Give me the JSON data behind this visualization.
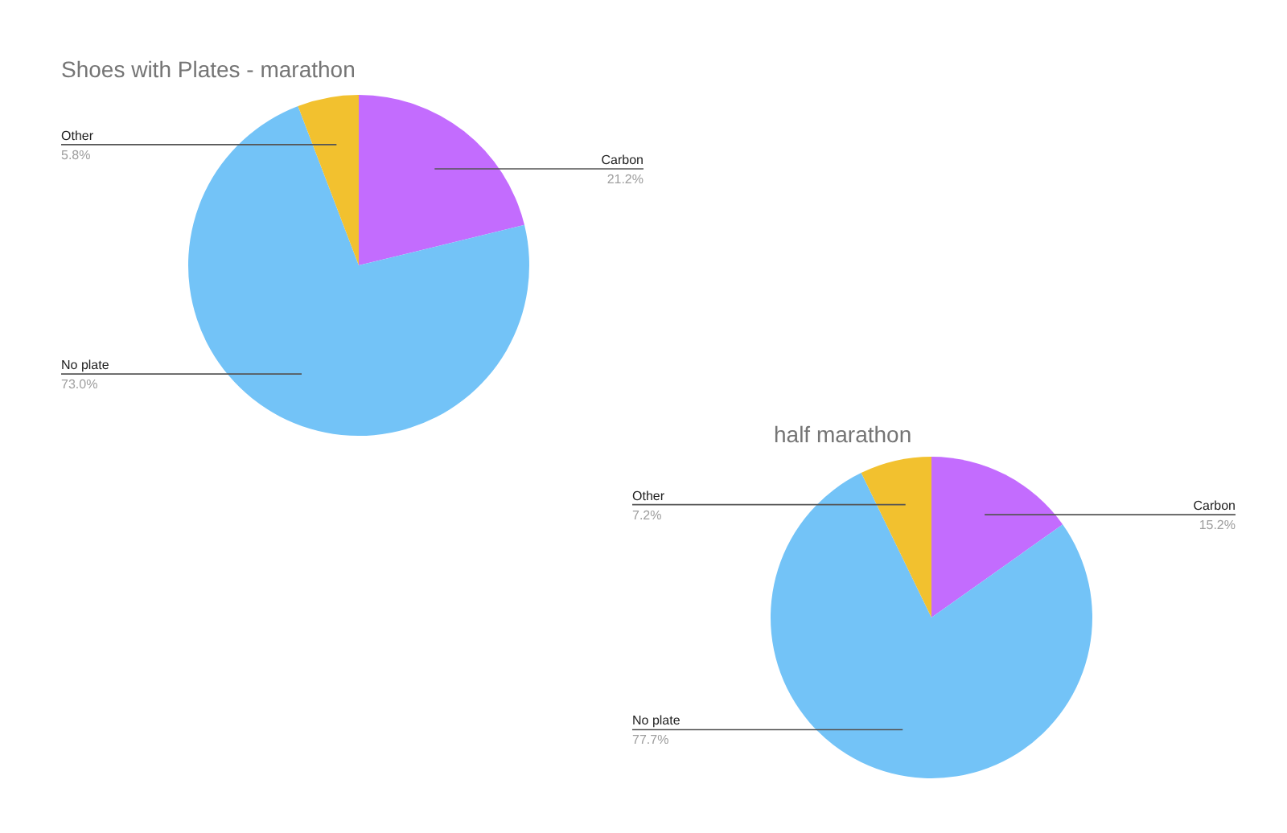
{
  "chart_data": [
    {
      "type": "pie",
      "title": "Shoes with Plates - marathon",
      "categories": [
        "Carbon",
        "No plate",
        "Other"
      ],
      "values": [
        21.2,
        73.0,
        5.8
      ],
      "colors": [
        "#c36cfe",
        "#73c3f7",
        "#f2c12f"
      ],
      "value_labels": [
        "21.2%",
        "73.0%",
        "5.8%"
      ]
    },
    {
      "type": "pie",
      "title": "half marathon",
      "categories": [
        "Carbon",
        "No plate",
        "Other"
      ],
      "values": [
        15.2,
        77.7,
        7.2
      ],
      "colors": [
        "#c36cfe",
        "#73c3f7",
        "#f2c12f"
      ],
      "value_labels": [
        "15.2%",
        "77.7%",
        "7.2%"
      ]
    }
  ]
}
